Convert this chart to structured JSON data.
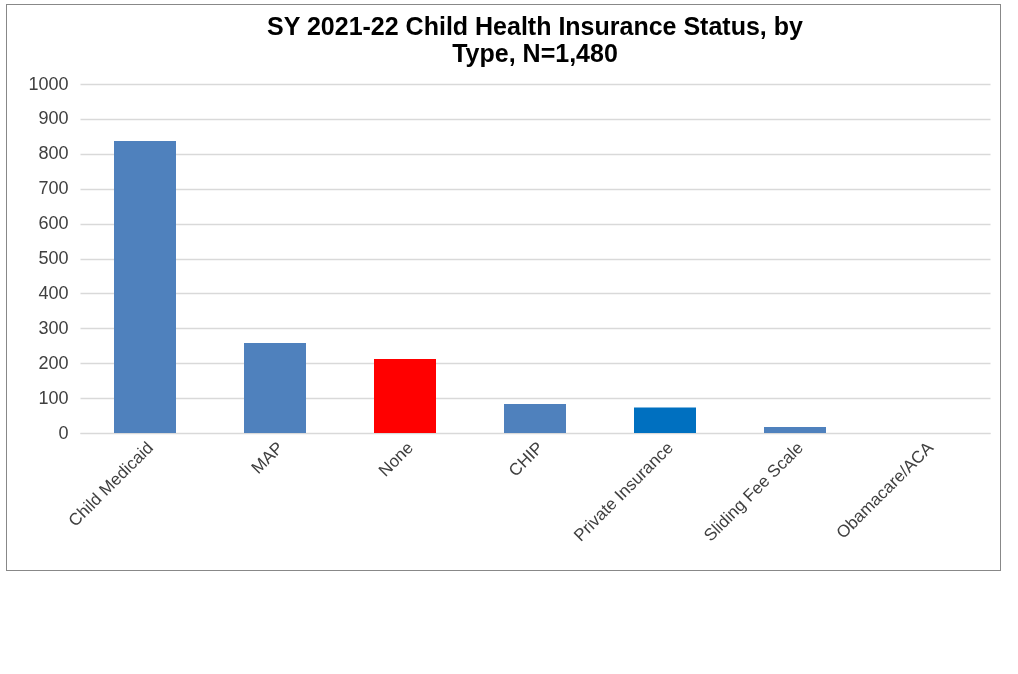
{
  "chart_data": {
    "type": "bar",
    "title": "SY 2021-22 Child Health Insurance Status, by Type, N=1,480",
    "categories": [
      "Child Medicaid",
      "MAP",
      "None",
      "CHIP",
      "Private Insurance",
      "Sliding Fee Scale",
      "Obamacare/ACA"
    ],
    "values": [
      837,
      258,
      212,
      83,
      73,
      17,
      0
    ],
    "colors": [
      "#4f81bd",
      "#4f81bd",
      "#ff0000",
      "#4f81bd",
      "#0070c0",
      "#4f81bd",
      "#4f81bd"
    ],
    "ylim": [
      0,
      1000
    ],
    "yticks": [
      0,
      100,
      200,
      300,
      400,
      500,
      600,
      700,
      800,
      900,
      1000
    ],
    "grid": "y",
    "legend": false
  }
}
